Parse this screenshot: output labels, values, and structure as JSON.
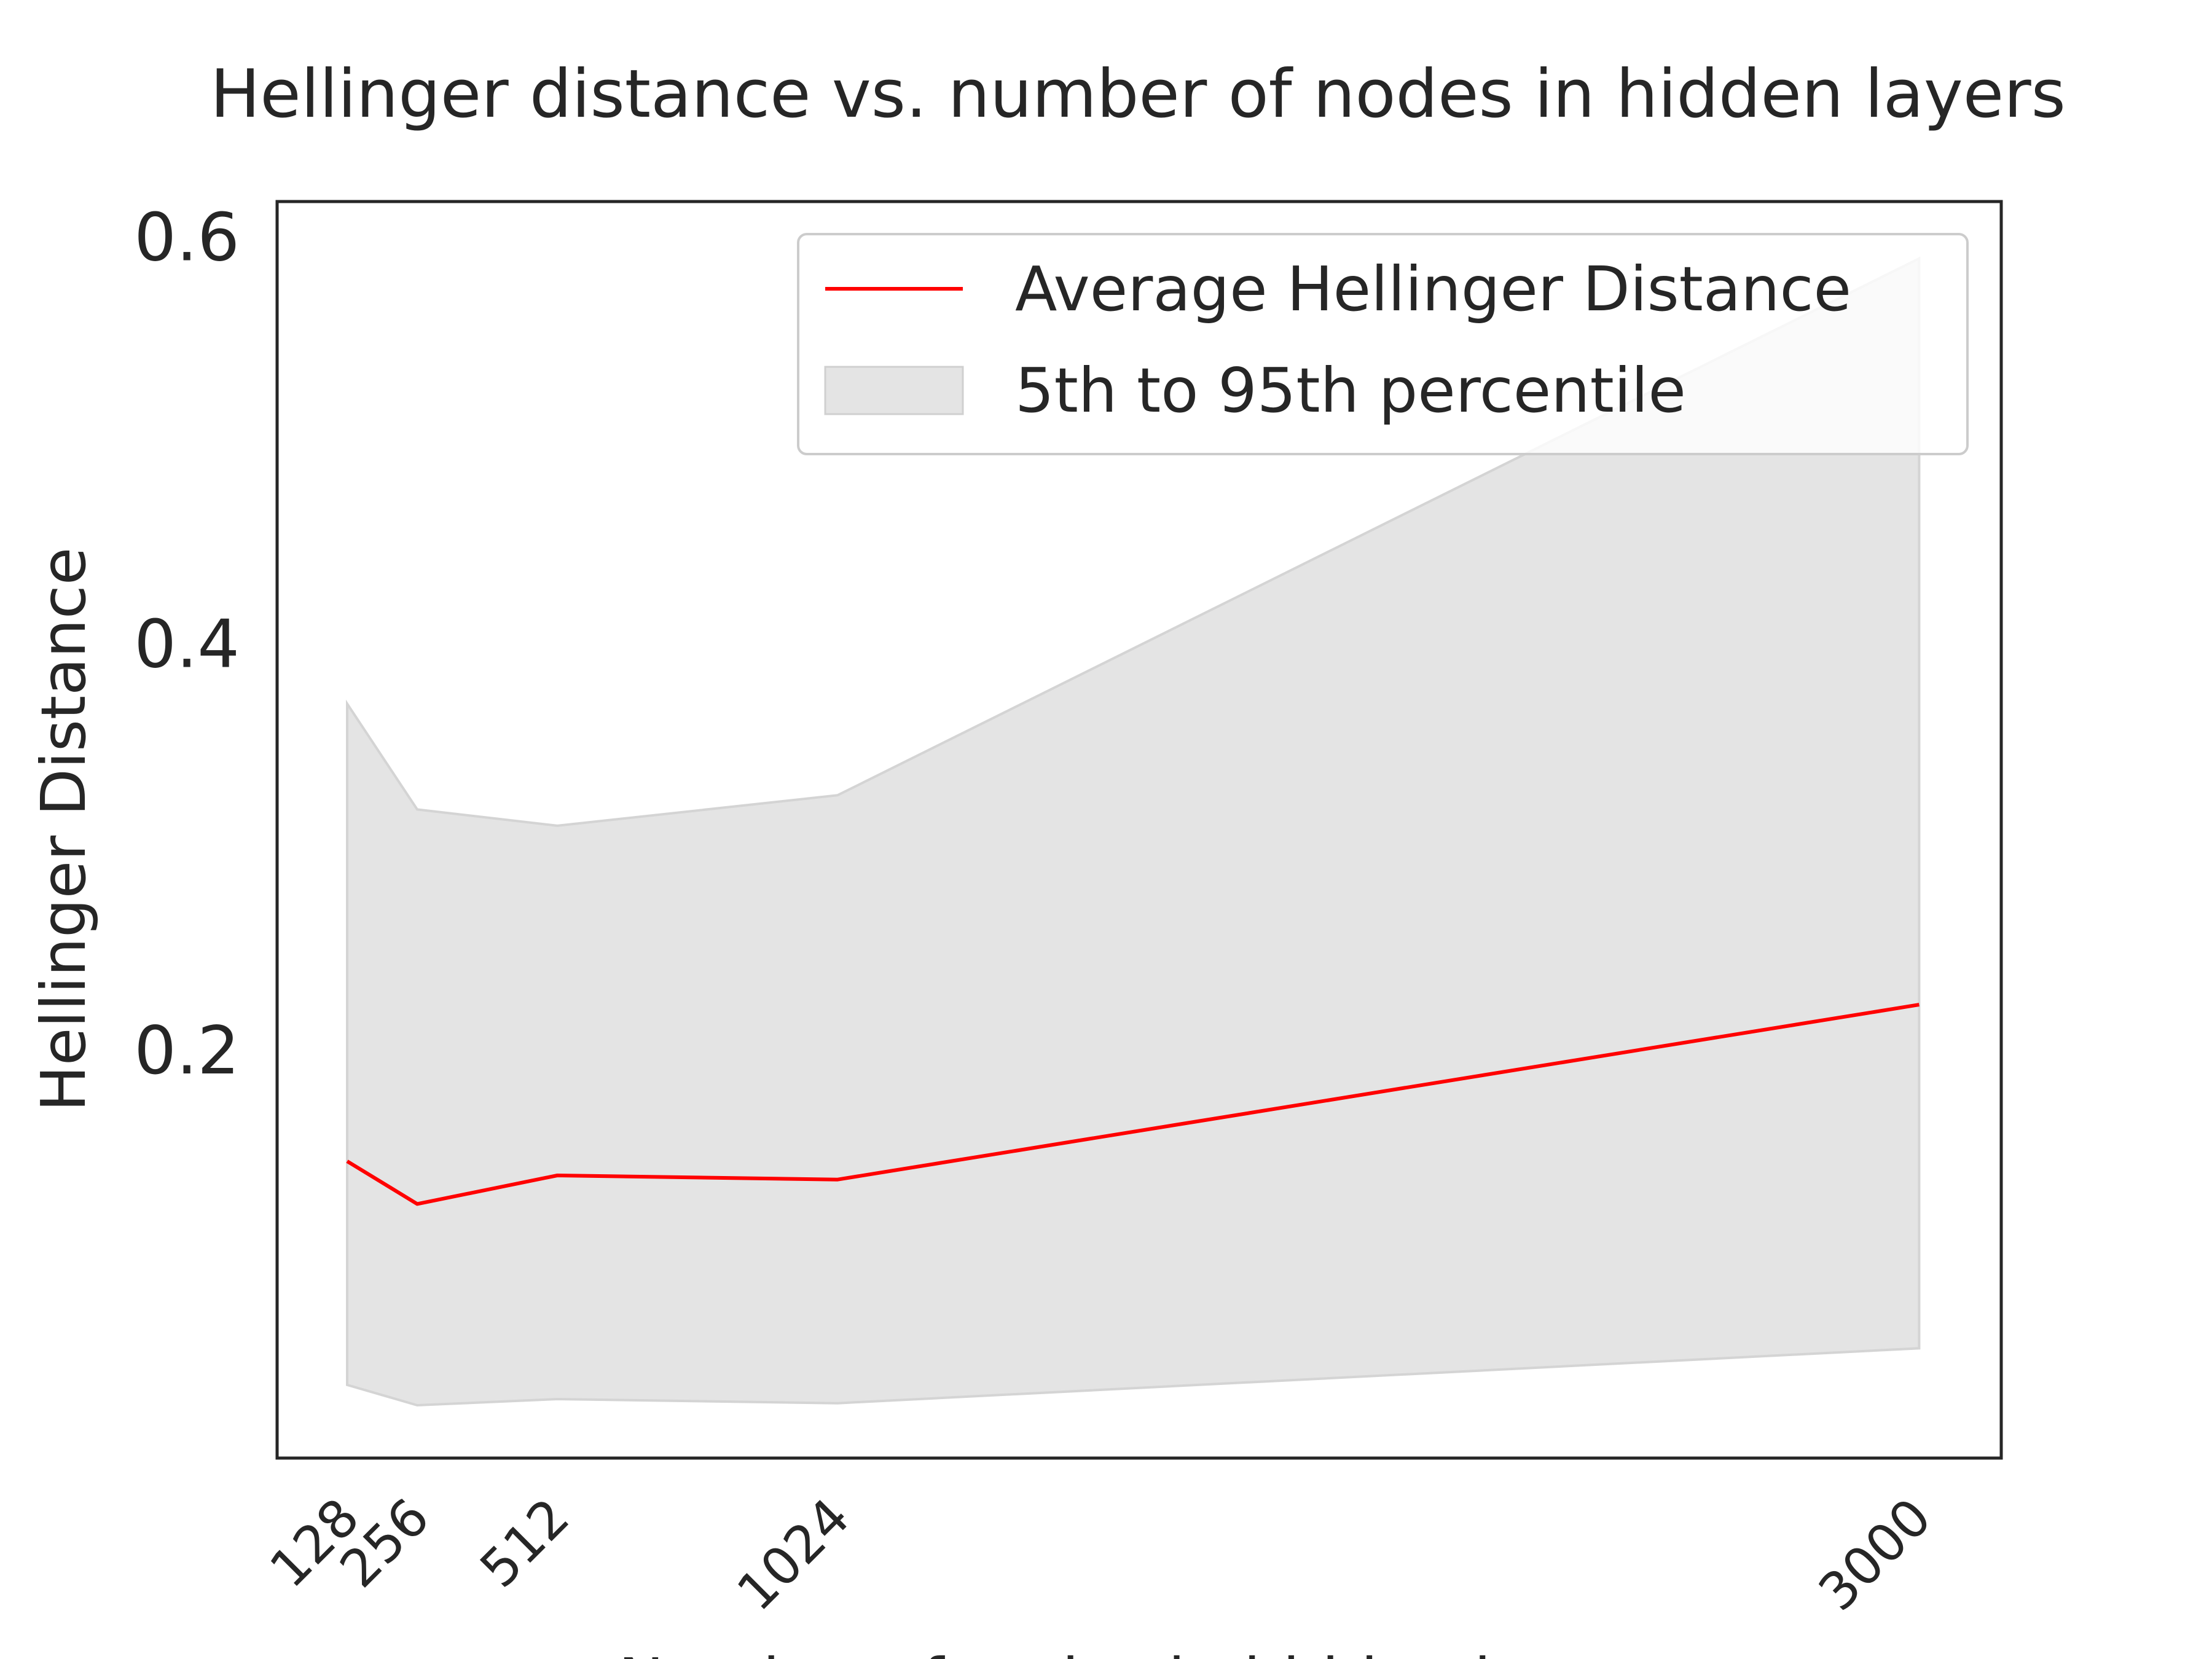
{
  "chart_data": {
    "type": "line",
    "title": "Hellinger distance vs. number of nodes in hidden layers",
    "xlabel": "Number of nodes in hidden layers",
    "ylabel": "Hellinger Distance",
    "x": [
      128,
      256,
      512,
      1024,
      3000
    ],
    "xticks": [
      "128",
      "256",
      "512",
      "1024",
      "3000"
    ],
    "xlim": [
      0,
      3150
    ],
    "ylim": [
      0.0,
      0.618
    ],
    "yticks": [
      "0.2",
      "0.4",
      "0.6"
    ],
    "yticks_values": [
      0.2,
      0.4,
      0.6
    ],
    "series": [
      {
        "name": "Average Hellinger Distance",
        "values": [
          0.146,
          0.125,
          0.139,
          0.137,
          0.223
        ],
        "color": "#ff0000"
      }
    ],
    "band": {
      "name": "5th to 95th percentile",
      "lower": [
        0.036,
        0.026,
        0.029,
        0.027,
        0.054
      ],
      "upper": [
        0.371,
        0.319,
        0.311,
        0.326,
        0.59
      ],
      "color": "#e4e4e4"
    },
    "legend_position": "top-right",
    "grid": false
  }
}
